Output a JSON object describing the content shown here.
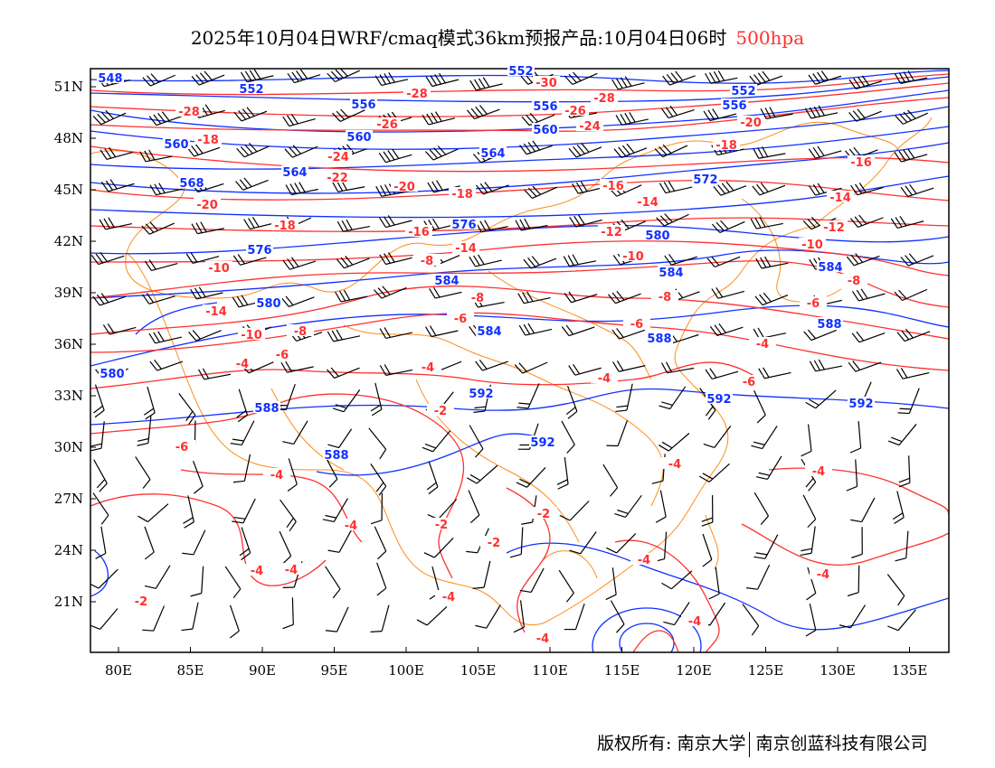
{
  "title": {
    "main": "2025年10月04日WRF/cmaq模式36km预报产品:10月04日06时",
    "level": "500hpa"
  },
  "axes": {
    "lat_labels": [
      "51N",
      "48N",
      "45N",
      "42N",
      "39N",
      "36N",
      "33N",
      "30N",
      "27N",
      "24N",
      "21N"
    ],
    "lon_labels": [
      "80E",
      "85E",
      "90E",
      "95E",
      "100E",
      "105E",
      "110E",
      "115E",
      "120E",
      "125E",
      "130E",
      "135E"
    ]
  },
  "colors": {
    "height_contour": "#1030ff",
    "temperature_contour": "#ff3030",
    "boundaries": "#ff8c1a",
    "wind_barb": "#000000"
  },
  "height_labels": [
    "548",
    "552",
    "552",
    "552",
    "556",
    "556",
    "556",
    "560",
    "560",
    "560",
    "564",
    "564",
    "568",
    "572",
    "576",
    "576",
    "580",
    "580",
    "584",
    "584",
    "584",
    "584",
    "588",
    "588",
    "588",
    "588",
    "592",
    "592",
    "592",
    "592",
    "580"
  ],
  "temp_labels": [
    "-30",
    "-28",
    "-28",
    "-28",
    "-26",
    "-26",
    "-24",
    "-24",
    "-22",
    "-20",
    "-20",
    "-20",
    "-18",
    "-18",
    "-18",
    "-18",
    "-16",
    "-16",
    "-16",
    "-14",
    "-14",
    "-14",
    "-14",
    "-12",
    "-12",
    "-10",
    "-10",
    "-10",
    "-10",
    "-8",
    "-8",
    "-8",
    "-8",
    "-8",
    "-6",
    "-6",
    "-6",
    "-6",
    "-6",
    "-6",
    "-4",
    "-4",
    "-4",
    "-4",
    "-4",
    "-4",
    "-4",
    "-4",
    "-4",
    "-4",
    "-4",
    "-4",
    "-4",
    "-4",
    "-4",
    "-2",
    "-2",
    "-2",
    "-2",
    "-2"
  ],
  "footer": {
    "copyright": "版权所有: 南京大学",
    "company": "南京创蓝科技有限公司"
  }
}
